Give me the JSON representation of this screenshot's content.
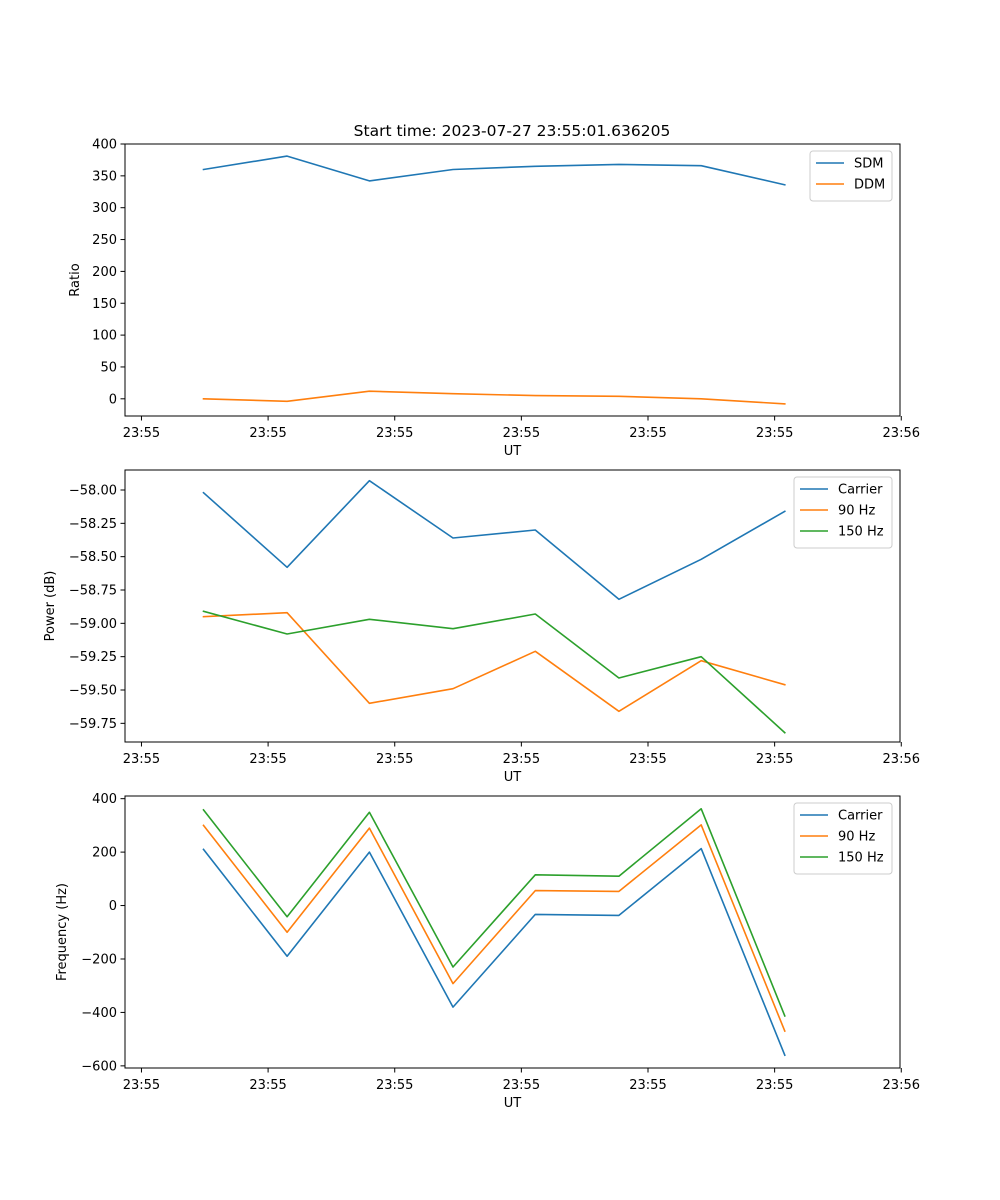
{
  "figure_title": "Start time: 2023-07-27 23:55:01.636205",
  "colors": {
    "c0": "#1f77b4",
    "c1": "#ff7f0e",
    "c2": "#2ca02c"
  },
  "chart_data": [
    {
      "type": "line",
      "title": "Start time: 2023-07-27 23:55:01.636205",
      "xlabel": "UT",
      "ylabel": "Ratio",
      "x_tick_labels": [
        "23:55",
        "23:55",
        "23:55",
        "23:55",
        "23:55",
        "23:55",
        "23:56"
      ],
      "x_ticks": [
        0,
        1,
        2,
        3,
        4,
        5,
        6
      ],
      "xlim": [
        -0.13,
        5.99
      ],
      "x": [
        0.49,
        1.15,
        1.8,
        2.46,
        3.11,
        3.77,
        4.42,
        5.08
      ],
      "y_ticks": [
        0,
        50,
        100,
        150,
        200,
        250,
        300,
        350,
        400
      ],
      "y_tick_labels": [
        "0",
        "50",
        "100",
        "150",
        "200",
        "250",
        "300",
        "350",
        "400"
      ],
      "ylim": [
        -27,
        400
      ],
      "legend_position": "top-right",
      "series": [
        {
          "name": "SDM",
          "color": "#1f77b4",
          "values": [
            360,
            381,
            342,
            360,
            365,
            368,
            366,
            336
          ]
        },
        {
          "name": "DDM",
          "color": "#ff7f0e",
          "values": [
            0,
            -4,
            12,
            8,
            5,
            4,
            0,
            -8
          ]
        }
      ]
    },
    {
      "type": "line",
      "xlabel": "UT",
      "ylabel": "Power (dB)",
      "x_tick_labels": [
        "23:55",
        "23:55",
        "23:55",
        "23:55",
        "23:55",
        "23:55",
        "23:56"
      ],
      "x_ticks": [
        0,
        1,
        2,
        3,
        4,
        5,
        6
      ],
      "xlim": [
        -0.13,
        5.99
      ],
      "x": [
        0.49,
        1.15,
        1.8,
        2.46,
        3.11,
        3.77,
        4.42,
        5.08
      ],
      "y_ticks": [
        -59.75,
        -59.5,
        -59.25,
        -59.0,
        -58.75,
        -58.5,
        -58.25,
        -58.0
      ],
      "y_tick_labels": [
        "−59.75",
        "−59.50",
        "−59.25",
        "−59.00",
        "−58.75",
        "−58.50",
        "−58.25",
        "−58.00"
      ],
      "ylim": [
        -59.89,
        -57.85
      ],
      "legend_position": "top-right",
      "series": [
        {
          "name": "Carrier",
          "color": "#1f77b4",
          "values": [
            -58.02,
            -58.58,
            -57.93,
            -58.36,
            -58.3,
            -58.82,
            -58.52,
            -58.16
          ]
        },
        {
          "name": "90 Hz",
          "color": "#ff7f0e",
          "values": [
            -58.95,
            -58.92,
            -59.6,
            -59.49,
            -59.21,
            -59.66,
            -59.28,
            -59.46
          ]
        },
        {
          "name": "150 Hz",
          "color": "#2ca02c",
          "values": [
            -58.91,
            -59.08,
            -58.97,
            -59.04,
            -58.93,
            -59.41,
            -59.25,
            -59.82
          ]
        }
      ]
    },
    {
      "type": "line",
      "xlabel": "UT",
      "ylabel": "Frequency (Hz)",
      "x_tick_labels": [
        "23:55",
        "23:55",
        "23:55",
        "23:55",
        "23:55",
        "23:55",
        "23:56"
      ],
      "x_ticks": [
        0,
        1,
        2,
        3,
        4,
        5,
        6
      ],
      "xlim": [
        -0.13,
        5.99
      ],
      "x": [
        0.49,
        1.15,
        1.8,
        2.46,
        3.11,
        3.77,
        4.42,
        5.08
      ],
      "y_ticks": [
        -600,
        -400,
        -200,
        0,
        200,
        400
      ],
      "y_tick_labels": [
        "−600",
        "−400",
        "−200",
        "0",
        "200",
        "400"
      ],
      "ylim": [
        -608,
        410
      ],
      "legend_position": "top-right",
      "series": [
        {
          "name": "Carrier",
          "color": "#1f77b4",
          "values": [
            210,
            -190,
            200,
            -380,
            -33,
            -37,
            213,
            -560
          ]
        },
        {
          "name": "90 Hz",
          "color": "#ff7f0e",
          "values": [
            300,
            -100,
            290,
            -292,
            56,
            53,
            302,
            -470
          ]
        },
        {
          "name": "150 Hz",
          "color": "#2ca02c",
          "values": [
            358,
            -42,
            349,
            -230,
            115,
            110,
            362,
            -413
          ]
        }
      ]
    }
  ]
}
